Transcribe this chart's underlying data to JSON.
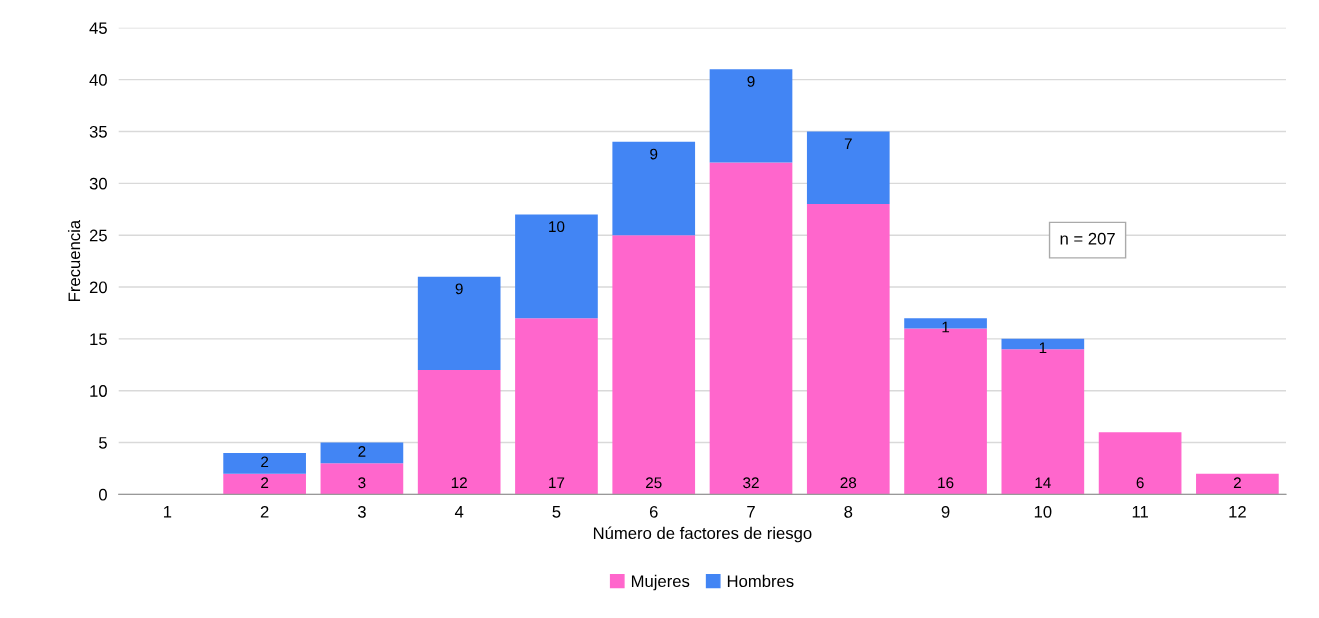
{
  "chart_data": {
    "type": "bar",
    "stacked": true,
    "xlabel": "Número de factores de riesgo",
    "ylabel": "Frecuencia",
    "categories": [
      "1",
      "2",
      "3",
      "4",
      "5",
      "6",
      "7",
      "8",
      "9",
      "10",
      "11",
      "12"
    ],
    "series": [
      {
        "name": "Mujeres",
        "color": "#ff66cc",
        "values": [
          0,
          2,
          3,
          12,
          17,
          25,
          32,
          28,
          16,
          14,
          6,
          2
        ],
        "value_labels": [
          null,
          "2",
          "3",
          "12",
          "17",
          "25",
          "32",
          "28",
          "16",
          "14",
          "6",
          "2"
        ]
      },
      {
        "name": "Hombres",
        "color": "#4285f4",
        "values": [
          0,
          2,
          2,
          9,
          10,
          9,
          9,
          7,
          1,
          1,
          0,
          0
        ],
        "value_labels": [
          null,
          "2",
          "2",
          "9",
          "10",
          "9",
          "9",
          "7",
          "1",
          "1",
          null,
          null
        ]
      }
    ],
    "ylim": [
      0,
      45
    ],
    "yticks": [
      0,
      5,
      10,
      15,
      20,
      25,
      30,
      35,
      40,
      45
    ],
    "grid": "y",
    "legend": "bottom",
    "annotations": [
      "n = 207"
    ]
  }
}
